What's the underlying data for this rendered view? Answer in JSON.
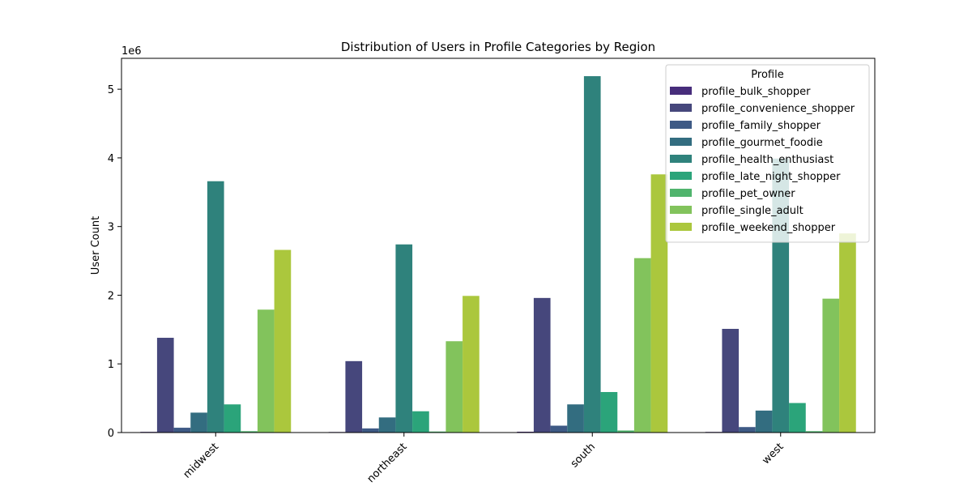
{
  "chart_data": {
    "type": "bar",
    "title": "Distribution of Users in Profile Categories by Region",
    "xlabel": "",
    "ylabel": "User Count",
    "y_multiplier_label": "1e6",
    "ylim": [
      0,
      5.45
    ],
    "yticks": [
      0,
      1,
      2,
      3,
      4,
      5
    ],
    "categories": [
      "midwest",
      "northeast",
      "south",
      "west"
    ],
    "legend": {
      "title": "Profile",
      "placement": "top-right"
    },
    "grid": false,
    "series": [
      {
        "name": "profile_bulk_shopper",
        "color": "#472d7b",
        "values": [
          0.01,
          0.008,
          0.012,
          0.009
        ]
      },
      {
        "name": "profile_convenience_shopper",
        "color": "#46477c",
        "values": [
          1.38,
          1.04,
          1.96,
          1.51
        ]
      },
      {
        "name": "profile_family_shopper",
        "color": "#3e5a85",
        "values": [
          0.07,
          0.06,
          0.1,
          0.08
        ]
      },
      {
        "name": "profile_gourmet_foodie",
        "color": "#336d80",
        "values": [
          0.29,
          0.22,
          0.41,
          0.32
        ]
      },
      {
        "name": "profile_health_enthusiast",
        "color": "#2f827c",
        "values": [
          3.66,
          2.74,
          5.19,
          3.99
        ]
      },
      {
        "name": "profile_late_night_shopper",
        "color": "#2ba47a",
        "values": [
          0.41,
          0.31,
          0.59,
          0.43
        ]
      },
      {
        "name": "profile_pet_owner",
        "color": "#50b46d",
        "values": [
          0.02,
          0.015,
          0.03,
          0.02
        ]
      },
      {
        "name": "profile_single_adult",
        "color": "#82c35c",
        "values": [
          1.79,
          1.33,
          2.54,
          1.95
        ]
      },
      {
        "name": "profile_weekend_shopper",
        "color": "#abc73d",
        "values": [
          2.66,
          1.99,
          3.76,
          2.9
        ]
      }
    ]
  }
}
